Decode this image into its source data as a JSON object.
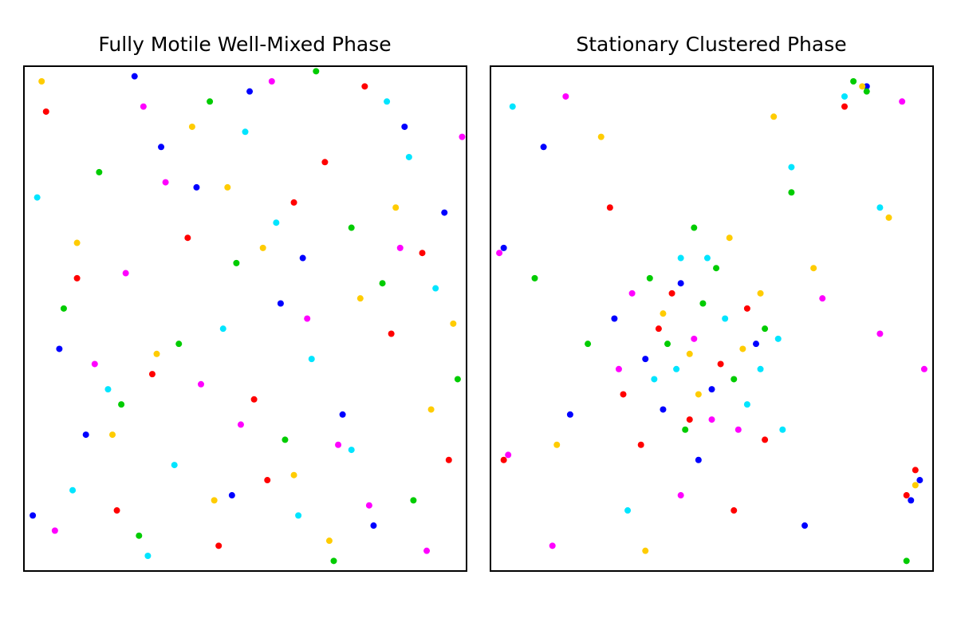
{
  "chart_data": [
    {
      "type": "scatter",
      "title": "Fully Motile Well-Mixed Phase",
      "xlim": [
        0,
        1
      ],
      "ylim": [
        0,
        1
      ],
      "series": [
        {
          "color": "#ff0000",
          "x": [
            0.05,
            0.21,
            0.37,
            0.52,
            0.68,
            0.83,
            0.96,
            0.12,
            0.44,
            0.61,
            0.77,
            0.29,
            0.9,
            0.55
          ],
          "y": [
            0.91,
            0.12,
            0.66,
            0.34,
            0.81,
            0.47,
            0.22,
            0.58,
            0.05,
            0.73,
            0.96,
            0.39,
            0.63,
            0.18
          ]
        },
        {
          "color": "#0000ff",
          "x": [
            0.14,
            0.31,
            0.47,
            0.63,
            0.79,
            0.95,
            0.08,
            0.25,
            0.58,
            0.72,
            0.86,
            0.39,
            0.02,
            0.51
          ],
          "y": [
            0.27,
            0.84,
            0.15,
            0.62,
            0.09,
            0.71,
            0.44,
            0.98,
            0.53,
            0.31,
            0.88,
            0.76,
            0.11,
            0.95
          ]
        },
        {
          "color": "#00cc00",
          "x": [
            0.09,
            0.26,
            0.42,
            0.59,
            0.74,
            0.88,
            0.17,
            0.35,
            0.66,
            0.81,
            0.98,
            0.48,
            0.22,
            0.7
          ],
          "y": [
            0.52,
            0.07,
            0.93,
            0.26,
            0.68,
            0.14,
            0.79,
            0.45,
            0.99,
            0.57,
            0.38,
            0.61,
            0.33,
            0.02
          ]
        },
        {
          "color": "#00e5ff",
          "x": [
            0.03,
            0.19,
            0.34,
            0.5,
            0.65,
            0.82,
            0.93,
            0.28,
            0.57,
            0.45,
            0.74,
            0.11,
            0.87,
            0.62
          ],
          "y": [
            0.74,
            0.36,
            0.21,
            0.87,
            0.42,
            0.93,
            0.56,
            0.03,
            0.69,
            0.48,
            0.24,
            0.16,
            0.82,
            0.11
          ]
        },
        {
          "color": "#ff00ff",
          "x": [
            0.07,
            0.23,
            0.4,
            0.56,
            0.71,
            0.85,
            0.99,
            0.16,
            0.32,
            0.64,
            0.78,
            0.49,
            0.91,
            0.27
          ],
          "y": [
            0.08,
            0.59,
            0.37,
            0.97,
            0.25,
            0.64,
            0.86,
            0.41,
            0.77,
            0.5,
            0.13,
            0.29,
            0.04,
            0.92
          ]
        },
        {
          "color": "#ffcc00",
          "x": [
            0.12,
            0.3,
            0.46,
            0.61,
            0.76,
            0.92,
            0.04,
            0.38,
            0.54,
            0.69,
            0.84,
            0.2,
            0.97,
            0.43
          ],
          "y": [
            0.65,
            0.43,
            0.76,
            0.19,
            0.54,
            0.32,
            0.97,
            0.88,
            0.64,
            0.06,
            0.72,
            0.27,
            0.49,
            0.14
          ]
        }
      ]
    },
    {
      "type": "scatter",
      "title": "Stationary Clustered Phase",
      "xlim": [
        0,
        1
      ],
      "ylim": [
        0,
        1
      ],
      "series": [
        {
          "color": "#ff0000",
          "x": [
            0.3,
            0.38,
            0.45,
            0.52,
            0.34,
            0.58,
            0.41,
            0.96,
            0.94,
            0.62,
            0.8,
            0.03,
            0.27,
            0.55
          ],
          "y": [
            0.35,
            0.48,
            0.3,
            0.41,
            0.25,
            0.52,
            0.55,
            0.2,
            0.15,
            0.26,
            0.92,
            0.22,
            0.72,
            0.12
          ]
        },
        {
          "color": "#0000ff",
          "x": [
            0.28,
            0.35,
            0.43,
            0.5,
            0.6,
            0.39,
            0.47,
            0.95,
            0.97,
            0.03,
            0.85,
            0.18,
            0.71,
            0.12
          ],
          "y": [
            0.5,
            0.42,
            0.57,
            0.36,
            0.45,
            0.32,
            0.22,
            0.14,
            0.18,
            0.64,
            0.96,
            0.31,
            0.09,
            0.84
          ]
        },
        {
          "color": "#00cc00",
          "x": [
            0.4,
            0.48,
            0.55,
            0.62,
            0.44,
            0.51,
            0.36,
            0.82,
            0.85,
            0.46,
            0.68,
            0.94,
            0.22,
            0.1
          ],
          "y": [
            0.45,
            0.53,
            0.38,
            0.48,
            0.28,
            0.6,
            0.58,
            0.97,
            0.95,
            0.68,
            0.75,
            0.02,
            0.45,
            0.58
          ]
        },
        {
          "color": "#00e5ff",
          "x": [
            0.42,
            0.53,
            0.37,
            0.58,
            0.49,
            0.65,
            0.43,
            0.8,
            0.66,
            0.68,
            0.05,
            0.31,
            0.88,
            0.61
          ],
          "y": [
            0.4,
            0.5,
            0.38,
            0.33,
            0.62,
            0.46,
            0.62,
            0.94,
            0.28,
            0.8,
            0.92,
            0.12,
            0.72,
            0.4
          ]
        },
        {
          "color": "#ff00ff",
          "x": [
            0.32,
            0.46,
            0.56,
            0.29,
            0.5,
            0.98,
            0.02,
            0.04,
            0.88,
            0.43,
            0.93,
            0.75,
            0.14,
            0.17
          ],
          "y": [
            0.55,
            0.46,
            0.28,
            0.4,
            0.3,
            0.4,
            0.63,
            0.23,
            0.47,
            0.15,
            0.93,
            0.54,
            0.05,
            0.94
          ]
        },
        {
          "color": "#ffcc00",
          "x": [
            0.45,
            0.57,
            0.39,
            0.61,
            0.47,
            0.54,
            0.73,
            0.84,
            0.35,
            0.9,
            0.25,
            0.64,
            0.15,
            0.96
          ],
          "y": [
            0.43,
            0.44,
            0.51,
            0.55,
            0.35,
            0.66,
            0.6,
            0.96,
            0.04,
            0.7,
            0.86,
            0.9,
            0.25,
            0.17
          ]
        }
      ]
    }
  ]
}
